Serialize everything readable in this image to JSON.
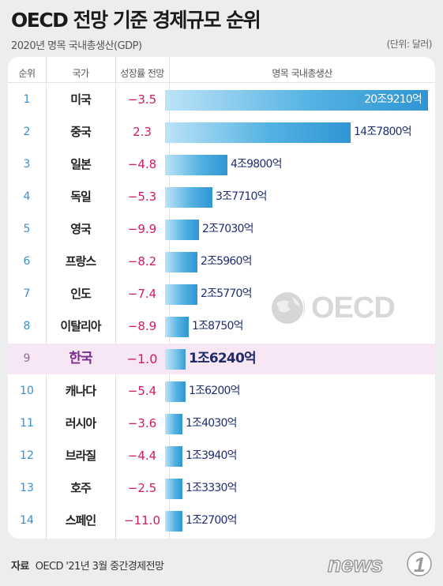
{
  "header": {
    "title": "OECD 전망 기준 경제규모 순위",
    "subtitle": "2020년 명목 국내총생산(GDP)",
    "unit": "(단위: 달러)"
  },
  "columns": {
    "rank": "순위",
    "country": "국가",
    "growth": "성장률 전망",
    "gdp": "명목 국내총생산"
  },
  "highlight_color": "#f7e6f3",
  "growth_color": "#d01a67",
  "bar_color": "#2f95d3",
  "chart_data": {
    "type": "bar",
    "orientation": "horizontal",
    "title": "OECD 전망 기준 경제규모 순위",
    "subtitle": "2020년 명목 국내총생산(GDP)",
    "unit": "(단위: 달러)",
    "rows": [
      {
        "rank": "1",
        "country": "미국",
        "growth": "−3.5",
        "value": 209210,
        "label": "20조9210억"
      },
      {
        "rank": "2",
        "country": "중국",
        "growth": "2.3",
        "value": 147800,
        "label": "14조7800억"
      },
      {
        "rank": "3",
        "country": "일본",
        "growth": "−4.8",
        "value": 49800,
        "label": "4조9800억"
      },
      {
        "rank": "4",
        "country": "독일",
        "growth": "−5.3",
        "value": 37710,
        "label": "3조7710억"
      },
      {
        "rank": "5",
        "country": "영국",
        "growth": "−9.9",
        "value": 27030,
        "label": "2조7030억"
      },
      {
        "rank": "6",
        "country": "프랑스",
        "growth": "−8.2",
        "value": 25960,
        "label": "2조5960억"
      },
      {
        "rank": "7",
        "country": "인도",
        "growth": "−7.4",
        "value": 25770,
        "label": "2조5770억"
      },
      {
        "rank": "8",
        "country": "이탈리아",
        "growth": "−8.9",
        "value": 18750,
        "label": "1조8750억"
      },
      {
        "rank": "9",
        "country": "한국",
        "growth": "−1.0",
        "value": 16240,
        "label": "1조6240억",
        "highlight": true
      },
      {
        "rank": "10",
        "country": "캐나다",
        "growth": "−5.4",
        "value": 16200,
        "label": "1조6200억"
      },
      {
        "rank": "11",
        "country": "러시아",
        "growth": "−3.6",
        "value": 14030,
        "label": "1조4030억"
      },
      {
        "rank": "12",
        "country": "브라질",
        "growth": "−4.4",
        "value": 13940,
        "label": "1조3940억"
      },
      {
        "rank": "13",
        "country": "호주",
        "growth": "−2.5",
        "value": 13330,
        "label": "1조3330억"
      },
      {
        "rank": "14",
        "country": "스페인",
        "growth": "−11.0",
        "value": 12700,
        "label": "1조2700억"
      }
    ]
  },
  "watermark": "OECD",
  "footer": {
    "source_label": "자료",
    "source_text": "OECD '21년 3월 중간경제전망",
    "brand": "news1"
  }
}
